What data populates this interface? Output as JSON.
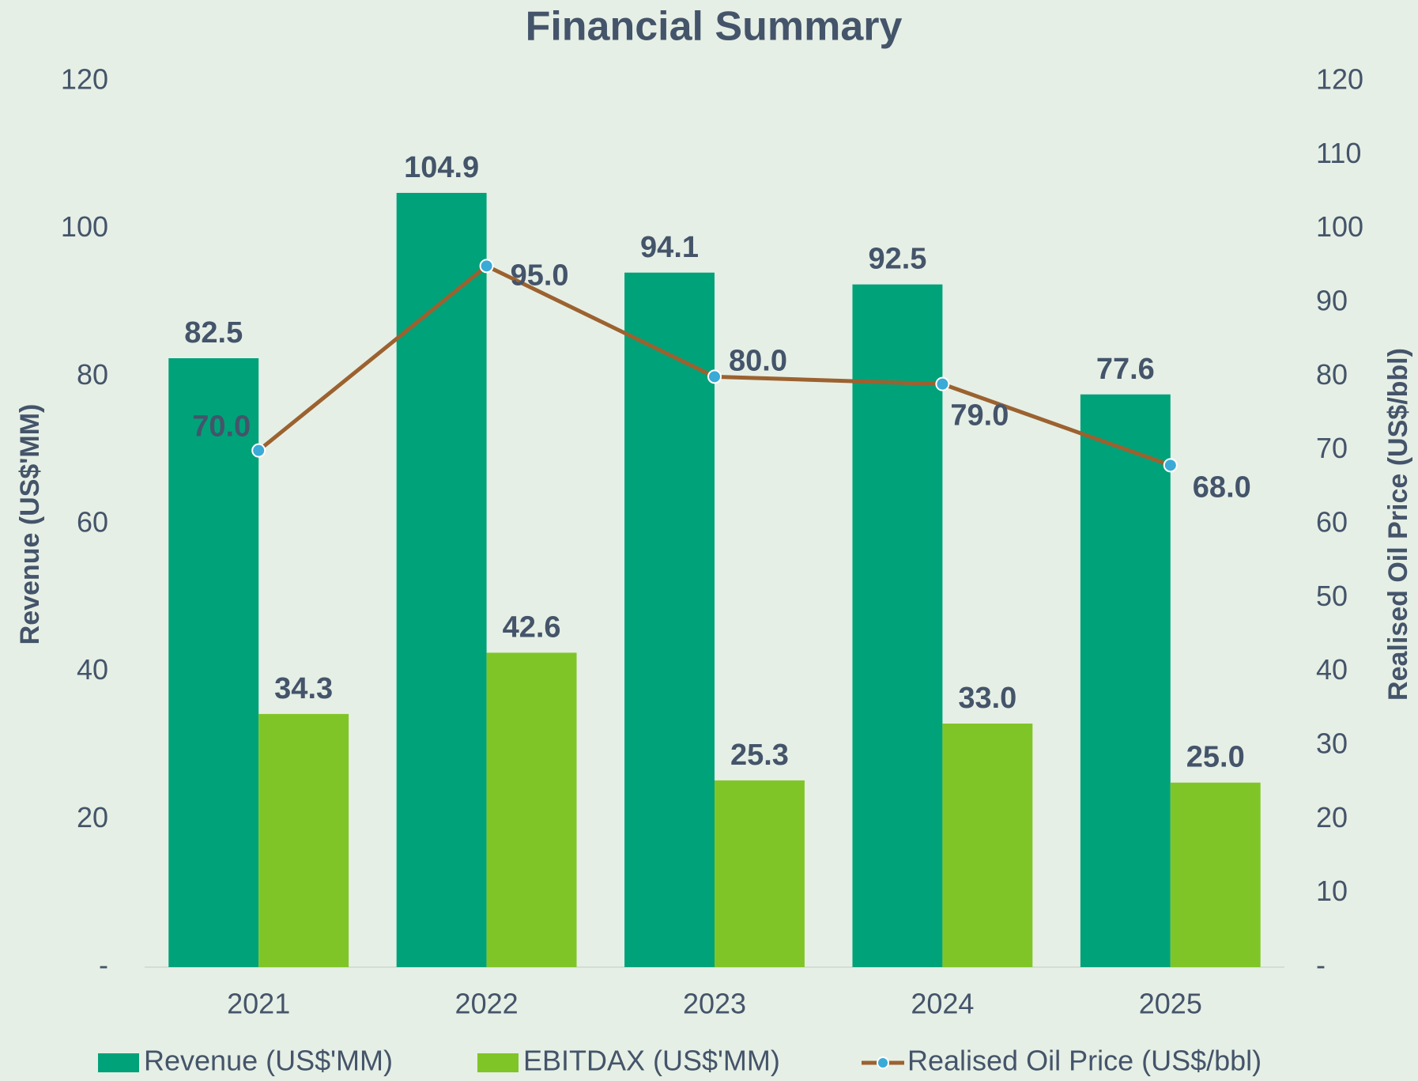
{
  "chart_data": {
    "type": "bar",
    "title": "Financial Summary",
    "categories": [
      "2021",
      "2022",
      "2023",
      "2024",
      "2025"
    ],
    "series": [
      {
        "name": "Revenue (US$'MM)",
        "color": "#00a27a",
        "type": "bar",
        "values": [
          82.5,
          104.9,
          94.1,
          92.5,
          77.6
        ],
        "value_labels": [
          "82.5",
          "104.9",
          "94.1",
          "92.5",
          "77.6"
        ]
      },
      {
        "name": "EBITDAX (US$'MM)",
        "color": "#80c527",
        "type": "bar",
        "values": [
          34.3,
          42.6,
          25.3,
          33.0,
          25.0
        ],
        "value_labels": [
          "34.3",
          "42.6",
          "25.3",
          "33.0",
          "25.0"
        ]
      },
      {
        "name": "Realised Oil Price (US$/bbl)",
        "color": "#9b6230",
        "marker_color": "#3aaad6",
        "type": "line",
        "axis": "y2",
        "values": [
          70,
          95,
          80,
          79,
          68
        ],
        "value_labels": [
          "70.0",
          "95.0",
          "80.0",
          "79.0",
          "68.0"
        ]
      }
    ],
    "ylabel": "Revenue (US$'MM)",
    "y2label": "Realised Oil Price (US$/bbl)",
    "ylim": [
      0,
      120
    ],
    "yticks": [
      {
        "value": 0,
        "label": "-"
      },
      20,
      40,
      60,
      80,
      100,
      120
    ],
    "y2lim": [
      0,
      120
    ],
    "y2ticks": [
      {
        "value": 0,
        "label": "-"
      },
      10,
      20,
      30,
      40,
      50,
      60,
      70,
      80,
      90,
      100,
      110,
      120
    ],
    "grid": false,
    "legend": "bottom"
  }
}
